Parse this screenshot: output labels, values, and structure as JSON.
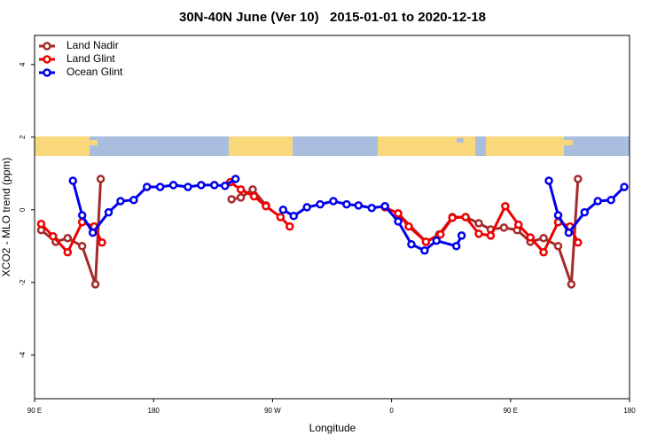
{
  "chart_data": {
    "type": "line",
    "title": "30N-40N June (Ver 10)   2015-01-01 to 2020-12-18",
    "xlabel": "Longitude",
    "ylabel": "XCO2 - MLO trend (ppm)",
    "xlim": [
      90,
      540
    ],
    "xticks": [
      {
        "value": 90,
        "label": "90 E"
      },
      {
        "value": 180,
        "label": "180"
      },
      {
        "value": 270,
        "label": "90 W"
      },
      {
        "value": 360,
        "label": "0"
      },
      {
        "value": 450,
        "label": "90 E"
      },
      {
        "value": 540,
        "label": "180"
      }
    ],
    "ylim": [
      -5.2,
      4.8
    ],
    "yticks": [
      -4,
      -2,
      0,
      2,
      4
    ],
    "legend": "top-left",
    "series": [
      {
        "name": "Land Nadir",
        "color": "#a52a2a",
        "x": [
          95,
          106,
          115,
          126,
          136,
          140,
          null,
          239,
          246,
          255,
          265,
          null,
          365,
          386,
          396,
          406,
          416,
          426,
          435,
          445,
          455,
          465,
          475,
          486,
          496,
          501
        ],
        "values": [
          -0.56,
          -0.88,
          -0.78,
          -1.0,
          -2.05,
          0.85,
          null,
          0.29,
          0.34,
          0.56,
          0.12,
          null,
          -0.1,
          -0.88,
          -0.68,
          -0.2,
          -0.2,
          -0.37,
          -0.54,
          -0.49,
          -0.56,
          -0.88,
          -0.78,
          -1.0,
          -2.05,
          0.85
        ]
      },
      {
        "name": "Land Glint",
        "color": "#ee0000",
        "x": [
          95,
          104,
          115,
          126,
          135,
          141,
          null,
          238,
          246,
          256,
          265,
          276,
          283,
          null,
          355,
          365,
          373,
          386,
          397,
          406,
          416,
          426,
          435,
          446,
          456,
          465,
          475,
          486,
          495,
          501
        ],
        "values": [
          -0.39,
          -0.73,
          -1.17,
          -0.34,
          -0.46,
          -0.9,
          null,
          0.76,
          0.56,
          0.37,
          0.1,
          -0.2,
          -0.46,
          null,
          0.07,
          -0.1,
          -0.46,
          -0.88,
          -0.68,
          -0.22,
          -0.2,
          -0.66,
          -0.71,
          0.1,
          -0.41,
          -0.76,
          -1.17,
          -0.34,
          -0.46,
          -0.9
        ]
      },
      {
        "name": "Ocean Glint",
        "color": "#0000ee",
        "x": [
          119,
          126,
          134,
          146,
          155,
          165,
          175,
          185,
          195,
          206,
          216,
          226,
          234,
          242,
          null,
          278,
          286,
          296,
          306,
          316,
          326,
          335,
          345,
          355,
          365,
          375,
          385,
          394,
          409,
          413,
          null,
          479,
          486,
          494,
          506,
          516,
          526,
          536
        ],
        "values": [
          0.8,
          -0.15,
          -0.63,
          -0.07,
          0.24,
          0.27,
          0.63,
          0.63,
          0.68,
          0.63,
          0.68,
          0.68,
          0.66,
          0.85,
          null,
          0,
          -0.17,
          0.07,
          0.15,
          0.24,
          0.15,
          0.12,
          0.05,
          0.1,
          -0.32,
          -0.95,
          -1.12,
          -0.85,
          -1.0,
          -0.71,
          null,
          0.8,
          -0.15,
          -0.63,
          -0.07,
          0.24,
          0.27,
          0.63
        ]
      }
    ]
  }
}
